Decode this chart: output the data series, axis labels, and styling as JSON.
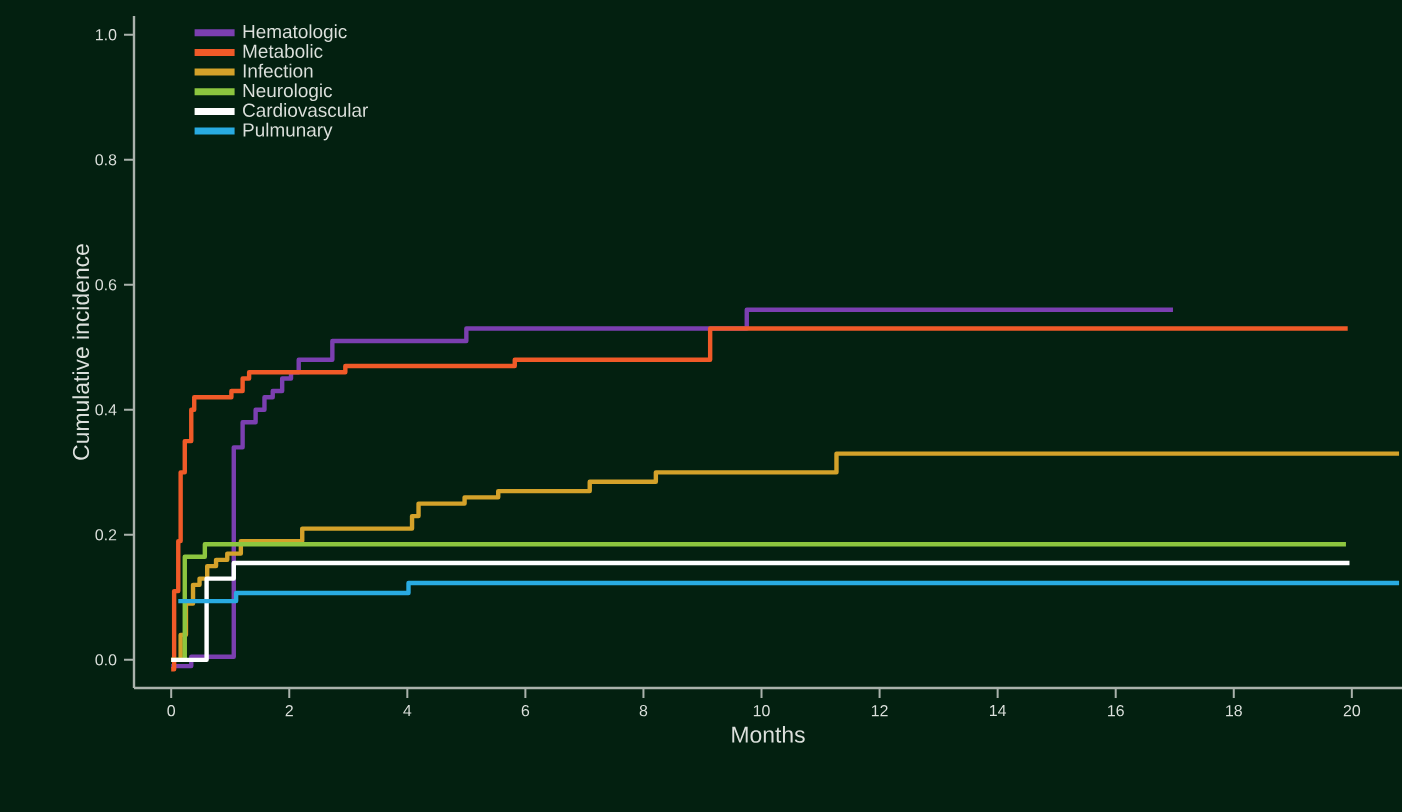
{
  "chart_data": {
    "type": "step",
    "xlabel": "Months",
    "ylabel": "Cumulative incidence",
    "xlim": [
      -0.63,
      20.85
    ],
    "ylim": [
      -0.045,
      1.03
    ],
    "xticks": [
      0,
      2,
      4,
      6,
      8,
      10,
      12,
      14,
      16,
      18,
      20
    ],
    "yticks": [
      {
        "value": 0,
        "label": "0.0"
      },
      {
        "value": 0.2,
        "label": "0.2"
      },
      {
        "value": 0.4,
        "label": "0.4"
      },
      {
        "value": 0.6,
        "label": "0.6"
      },
      {
        "value": 0.8,
        "label": "0.8"
      },
      {
        "value": 1,
        "label": "1.0"
      }
    ],
    "legend": "top left",
    "grid": false,
    "marker": "none",
    "line_style": "solid",
    "series": [
      {
        "name": "Hematologic",
        "color": "#7b3fb0",
        "x": [
          0,
          0.34,
          1.06,
          1.21,
          1.43,
          1.58,
          1.72,
          1.88,
          2.03,
          2.16,
          2.73,
          5.0,
          9.75,
          16.97
        ],
        "values": [
          -0.01,
          0.005,
          0.34,
          0.38,
          0.4,
          0.42,
          0.43,
          0.45,
          0.46,
          0.48,
          0.51,
          0.53,
          0.56,
          0.56
        ]
      },
      {
        "name": "Metabolic",
        "color": "#f05a28",
        "x": [
          0,
          0.05,
          0.12,
          0.16,
          0.23,
          0.34,
          0.39,
          1.02,
          1.21,
          1.32,
          2.95,
          5.82,
          9.13,
          19.93
        ],
        "values": [
          -0.015,
          0.11,
          0.19,
          0.3,
          0.35,
          0.4,
          0.42,
          0.43,
          0.45,
          0.46,
          0.47,
          0.48,
          0.53,
          0.53
        ]
      },
      {
        "name": "Infection",
        "color": "#d4a22a",
        "x": [
          0,
          0.16,
          0.25,
          0.37,
          0.48,
          0.61,
          0.76,
          0.95,
          1.18,
          2.22,
          4.08,
          4.19,
          4.97,
          5.54,
          7.09,
          8.21,
          11.27,
          20.8
        ],
        "values": [
          0,
          0.04,
          0.09,
          0.12,
          0.13,
          0.15,
          0.16,
          0.17,
          0.19,
          0.21,
          0.23,
          0.25,
          0.26,
          0.27,
          0.285,
          0.3,
          0.33,
          0.33
        ]
      },
      {
        "name": "Neurologic",
        "color": "#8dc63f",
        "x": [
          0,
          0.23,
          0.57,
          19.9
        ],
        "values": [
          0,
          0.165,
          0.185,
          0.185
        ]
      },
      {
        "name": "Cardiovascular",
        "color": "#ffffff",
        "x": [
          0,
          0.6,
          1.06,
          19.96
        ],
        "values": [
          0,
          0.13,
          0.155,
          0.155
        ]
      },
      {
        "name": "Pulmunary",
        "color": "#29abe2",
        "x": [
          0.12,
          1.1,
          4.02,
          20.8
        ],
        "values": [
          0.094,
          0.107,
          0.123,
          0.123
        ]
      }
    ]
  }
}
